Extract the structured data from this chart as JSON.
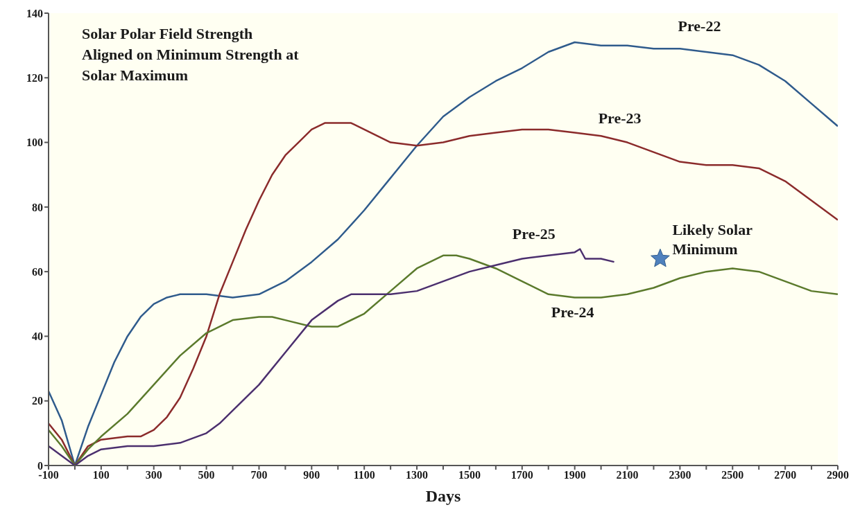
{
  "chart_data": {
    "type": "line",
    "title": "Solar Polar Field Strength Aligned on Minimum Strength at Solar Maximum",
    "xlabel": "Days",
    "xlim": [
      -100,
      2900
    ],
    "xticks": [
      -100,
      {
        "value": 0,
        "label": null
      },
      100,
      {
        "value": 200,
        "label": null
      },
      300,
      {
        "value": 400,
        "label": null
      },
      500,
      {
        "value": 600,
        "label": null
      },
      700,
      {
        "value": 800,
        "label": null
      },
      900,
      {
        "value": 1000,
        "label": null
      },
      1100,
      {
        "value": 1200,
        "label": null
      },
      1300,
      {
        "value": 1400,
        "label": null
      },
      1500,
      {
        "value": 1600,
        "label": null
      },
      1700,
      {
        "value": 1800,
        "label": null
      },
      1900,
      {
        "value": 2000,
        "label": null
      },
      2100,
      {
        "value": 2200,
        "label": null
      },
      2300,
      {
        "value": 2400,
        "label": null
      },
      2500,
      {
        "value": 2600,
        "label": null
      },
      2700,
      {
        "value": 2800,
        "label": null
      },
      2900
    ],
    "ylim": [
      0,
      140
    ],
    "yticks": [
      0,
      20,
      40,
      60,
      80,
      100,
      120,
      140
    ],
    "series": [
      {
        "name": "Pre-22",
        "color": "#2f5b8c",
        "x": [
          -100,
          -50,
          0,
          50,
          100,
          150,
          200,
          250,
          300,
          350,
          400,
          500,
          600,
          700,
          800,
          900,
          1000,
          1100,
          1200,
          1300,
          1400,
          1500,
          1600,
          1700,
          1800,
          1900,
          2000,
          2100,
          2200,
          2300,
          2400,
          2500,
          2600,
          2700,
          2800,
          2900
        ],
        "values": [
          23,
          14,
          0,
          12,
          22,
          32,
          40,
          46,
          50,
          52,
          53,
          53,
          52,
          53,
          57,
          63,
          70,
          79,
          89,
          99,
          108,
          114,
          119,
          123,
          128,
          131,
          130,
          130,
          129,
          129,
          128,
          127,
          124,
          119,
          112,
          105
        ]
      },
      {
        "name": "Pre-23",
        "color": "#8b2b2b",
        "x": [
          -100,
          -50,
          0,
          50,
          100,
          200,
          250,
          300,
          350,
          400,
          450,
          500,
          550,
          600,
          650,
          700,
          750,
          800,
          850,
          900,
          950,
          1000,
          1050,
          1100,
          1200,
          1300,
          1400,
          1500,
          1600,
          1700,
          1800,
          1900,
          2000,
          2100,
          2200,
          2300,
          2400,
          2500,
          2600,
          2700,
          2800,
          2900
        ],
        "values": [
          13,
          8,
          0,
          6,
          8,
          9,
          9,
          11,
          15,
          21,
          30,
          40,
          53,
          63,
          73,
          82,
          90,
          96,
          100,
          104,
          106,
          106,
          106,
          104,
          100,
          99,
          100,
          102,
          103,
          104,
          104,
          103,
          102,
          100,
          97,
          94,
          93,
          93,
          92,
          88,
          82,
          76
        ]
      },
      {
        "name": "Pre-24",
        "color": "#5b7a2c",
        "x": [
          -100,
          -50,
          0,
          50,
          100,
          200,
          300,
          400,
          500,
          600,
          700,
          750,
          800,
          900,
          1000,
          1100,
          1200,
          1300,
          1400,
          1450,
          1500,
          1600,
          1700,
          1800,
          1900,
          2000,
          2100,
          2200,
          2300,
          2400,
          2500,
          2600,
          2700,
          2800,
          2900
        ],
        "values": [
          11,
          6,
          0,
          5,
          9,
          16,
          25,
          34,
          41,
          45,
          46,
          46,
          45,
          43,
          43,
          47,
          54,
          61,
          65,
          65,
          64,
          61,
          57,
          53,
          52,
          52,
          53,
          55,
          58,
          60,
          61,
          60,
          57,
          54,
          53
        ]
      },
      {
        "name": "Pre-25",
        "color": "#4b2f6e",
        "x": [
          -100,
          -50,
          0,
          50,
          100,
          200,
          300,
          400,
          500,
          550,
          600,
          700,
          800,
          900,
          1000,
          1050,
          1200,
          1300,
          1400,
          1500,
          1600,
          1700,
          1800,
          1900,
          1920,
          1940,
          2000,
          2050
        ],
        "values": [
          6,
          3,
          0,
          3,
          5,
          6,
          6,
          7,
          10,
          13,
          17,
          25,
          35,
          45,
          51,
          53,
          53,
          54,
          57,
          60,
          62,
          64,
          65,
          66,
          67,
          64,
          64,
          63
        ]
      },
      {
        "name": "Likely Solar Minimum",
        "type": "scatter",
        "marker": "star",
        "color": "#4f81bd",
        "x": [
          2225
        ],
        "values": [
          64
        ]
      }
    ]
  }
}
